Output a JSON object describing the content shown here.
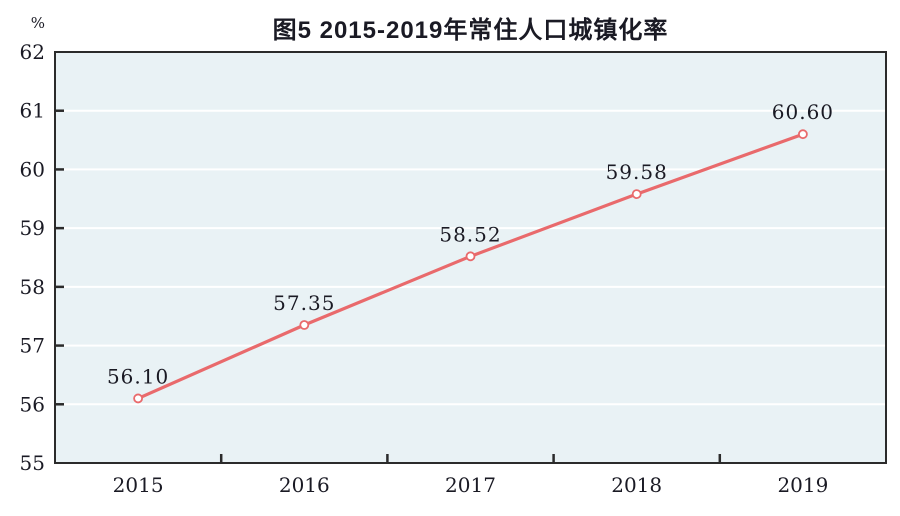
{
  "chart_data": {
    "type": "line",
    "title": "图5  2015-2019年常住人口城镇化率",
    "ylabel": "%",
    "xlabel": "",
    "categories": [
      "2015",
      "2016",
      "2017",
      "2018",
      "2019"
    ],
    "values": [
      56.1,
      57.35,
      58.52,
      59.58,
      60.6
    ],
    "point_labels": [
      "56.10",
      "57.35",
      "58.52",
      "59.58",
      "60.60"
    ],
    "ylim": [
      55,
      62
    ],
    "yticks": [
      55,
      56,
      57,
      58,
      59,
      60,
      61,
      62
    ],
    "grid": "horizontal",
    "legend": "none",
    "colors": {
      "line": "#e96a6c",
      "marker_fill": "#ffffff",
      "plot_bg": "#e9f2f5",
      "grid": "#ffffff",
      "axis": "#2b2b2b",
      "text": "#1a1a24"
    }
  }
}
